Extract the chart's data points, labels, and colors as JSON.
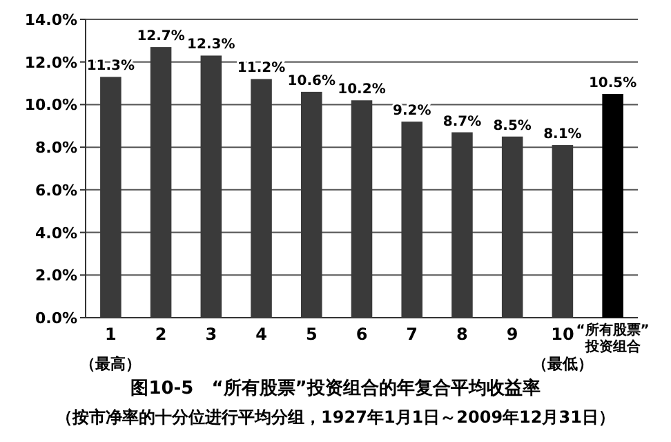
{
  "chart_data": {
    "type": "bar",
    "title": "图10-5　“所有股票”投资组合的年复合平均收益率",
    "subtitle": "（按市净率的十分位进行平均分组，1927年1月1日～2009年12月31日）",
    "categories": [
      "1",
      "2",
      "3",
      "4",
      "5",
      "6",
      "7",
      "8",
      "9",
      "10",
      "“所有股票”投资组合"
    ],
    "values": [
      11.3,
      12.7,
      12.3,
      11.2,
      10.6,
      10.2,
      9.2,
      8.7,
      8.5,
      8.1,
      10.5
    ],
    "value_labels": [
      "11.3%",
      "12.7%",
      "12.3%",
      "11.2%",
      "10.6%",
      "10.2%",
      "9.2%",
      "8.7%",
      "8.5%",
      "8.1%",
      "10.5%"
    ],
    "colors": [
      "#3a3a3a",
      "#3a3a3a",
      "#3a3a3a",
      "#3a3a3a",
      "#3a3a3a",
      "#3a3a3a",
      "#3a3a3a",
      "#3a3a3a",
      "#3a3a3a",
      "#3a3a3a",
      "#000000"
    ],
    "ylim": [
      0,
      14
    ],
    "yticks": [
      {
        "value": 0,
        "label": "0.0%"
      },
      {
        "value": 2,
        "label": "2.0%"
      },
      {
        "value": 4,
        "label": "4.0%"
      },
      {
        "value": 6,
        "label": "6.0%"
      },
      {
        "value": 8,
        "label": "8.0%"
      },
      {
        "value": 10,
        "label": "10.0%"
      },
      {
        "value": 12,
        "label": "12.0%"
      },
      {
        "value": 14,
        "label": "14.0%"
      }
    ],
    "grid": "y",
    "annotations": [
      "（最高）",
      "（最低）"
    ]
  }
}
